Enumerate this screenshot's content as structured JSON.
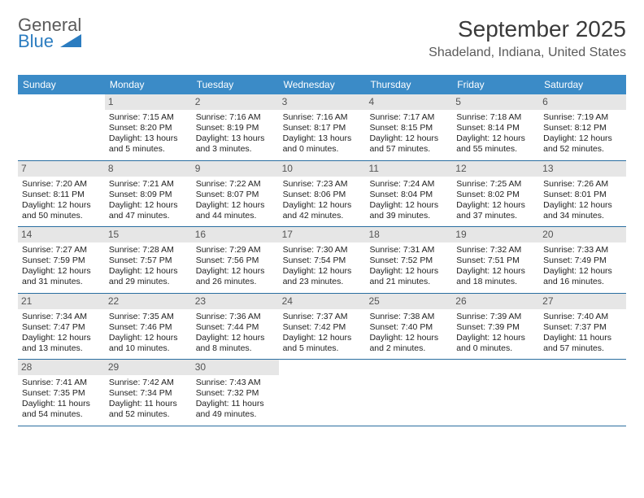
{
  "logo": {
    "line1": "General",
    "line2": "Blue"
  },
  "title": "September 2025",
  "location": "Shadeland, Indiana, United States",
  "colors": {
    "header_bg": "#3b8bc7",
    "header_text": "#ffffff",
    "daynum_bg": "#e6e6e6",
    "daynum_text": "#555555",
    "rule": "#2a6ea0",
    "body_text": "#222222",
    "title_text": "#3a3a3a",
    "logo_gray": "#5a5a5a",
    "logo_blue": "#2b7cc0",
    "background": "#ffffff"
  },
  "typography": {
    "title_fontsize": 28,
    "location_fontsize": 16,
    "dayname_fontsize": 12,
    "daynum_fontsize": 12,
    "cell_fontsize": 10.5,
    "font_family": "Arial"
  },
  "layout": {
    "columns": 7,
    "rows": 5,
    "first_weekday_index": 1
  },
  "daynames": [
    "Sunday",
    "Monday",
    "Tuesday",
    "Wednesday",
    "Thursday",
    "Friday",
    "Saturday"
  ],
  "days": [
    {
      "n": 1,
      "sunrise": "7:15 AM",
      "sunset": "8:20 PM",
      "daylight": "13 hours and 5 minutes."
    },
    {
      "n": 2,
      "sunrise": "7:16 AM",
      "sunset": "8:19 PM",
      "daylight": "13 hours and 3 minutes."
    },
    {
      "n": 3,
      "sunrise": "7:16 AM",
      "sunset": "8:17 PM",
      "daylight": "13 hours and 0 minutes."
    },
    {
      "n": 4,
      "sunrise": "7:17 AM",
      "sunset": "8:15 PM",
      "daylight": "12 hours and 57 minutes."
    },
    {
      "n": 5,
      "sunrise": "7:18 AM",
      "sunset": "8:14 PM",
      "daylight": "12 hours and 55 minutes."
    },
    {
      "n": 6,
      "sunrise": "7:19 AM",
      "sunset": "8:12 PM",
      "daylight": "12 hours and 52 minutes."
    },
    {
      "n": 7,
      "sunrise": "7:20 AM",
      "sunset": "8:11 PM",
      "daylight": "12 hours and 50 minutes."
    },
    {
      "n": 8,
      "sunrise": "7:21 AM",
      "sunset": "8:09 PM",
      "daylight": "12 hours and 47 minutes."
    },
    {
      "n": 9,
      "sunrise": "7:22 AM",
      "sunset": "8:07 PM",
      "daylight": "12 hours and 44 minutes."
    },
    {
      "n": 10,
      "sunrise": "7:23 AM",
      "sunset": "8:06 PM",
      "daylight": "12 hours and 42 minutes."
    },
    {
      "n": 11,
      "sunrise": "7:24 AM",
      "sunset": "8:04 PM",
      "daylight": "12 hours and 39 minutes."
    },
    {
      "n": 12,
      "sunrise": "7:25 AM",
      "sunset": "8:02 PM",
      "daylight": "12 hours and 37 minutes."
    },
    {
      "n": 13,
      "sunrise": "7:26 AM",
      "sunset": "8:01 PM",
      "daylight": "12 hours and 34 minutes."
    },
    {
      "n": 14,
      "sunrise": "7:27 AM",
      "sunset": "7:59 PM",
      "daylight": "12 hours and 31 minutes."
    },
    {
      "n": 15,
      "sunrise": "7:28 AM",
      "sunset": "7:57 PM",
      "daylight": "12 hours and 29 minutes."
    },
    {
      "n": 16,
      "sunrise": "7:29 AM",
      "sunset": "7:56 PM",
      "daylight": "12 hours and 26 minutes."
    },
    {
      "n": 17,
      "sunrise": "7:30 AM",
      "sunset": "7:54 PM",
      "daylight": "12 hours and 23 minutes."
    },
    {
      "n": 18,
      "sunrise": "7:31 AM",
      "sunset": "7:52 PM",
      "daylight": "12 hours and 21 minutes."
    },
    {
      "n": 19,
      "sunrise": "7:32 AM",
      "sunset": "7:51 PM",
      "daylight": "12 hours and 18 minutes."
    },
    {
      "n": 20,
      "sunrise": "7:33 AM",
      "sunset": "7:49 PM",
      "daylight": "12 hours and 16 minutes."
    },
    {
      "n": 21,
      "sunrise": "7:34 AM",
      "sunset": "7:47 PM",
      "daylight": "12 hours and 13 minutes."
    },
    {
      "n": 22,
      "sunrise": "7:35 AM",
      "sunset": "7:46 PM",
      "daylight": "12 hours and 10 minutes."
    },
    {
      "n": 23,
      "sunrise": "7:36 AM",
      "sunset": "7:44 PM",
      "daylight": "12 hours and 8 minutes."
    },
    {
      "n": 24,
      "sunrise": "7:37 AM",
      "sunset": "7:42 PM",
      "daylight": "12 hours and 5 minutes."
    },
    {
      "n": 25,
      "sunrise": "7:38 AM",
      "sunset": "7:40 PM",
      "daylight": "12 hours and 2 minutes."
    },
    {
      "n": 26,
      "sunrise": "7:39 AM",
      "sunset": "7:39 PM",
      "daylight": "12 hours and 0 minutes."
    },
    {
      "n": 27,
      "sunrise": "7:40 AM",
      "sunset": "7:37 PM",
      "daylight": "11 hours and 57 minutes."
    },
    {
      "n": 28,
      "sunrise": "7:41 AM",
      "sunset": "7:35 PM",
      "daylight": "11 hours and 54 minutes."
    },
    {
      "n": 29,
      "sunrise": "7:42 AM",
      "sunset": "7:34 PM",
      "daylight": "11 hours and 52 minutes."
    },
    {
      "n": 30,
      "sunrise": "7:43 AM",
      "sunset": "7:32 PM",
      "daylight": "11 hours and 49 minutes."
    }
  ],
  "labels": {
    "sunrise": "Sunrise:",
    "sunset": "Sunset:",
    "daylight": "Daylight:"
  }
}
